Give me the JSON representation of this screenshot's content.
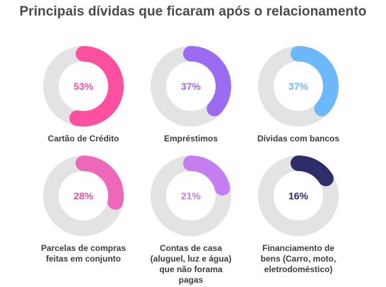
{
  "title": "Principais dívidas que ficaram após o relacionamento",
  "chart_data": [
    {
      "type": "pie",
      "title": "",
      "value": 53,
      "value_label": "53%",
      "category": "Cartão de Crédito",
      "label_lines": [
        "Cartão de Crédito"
      ],
      "color": "#ff4fa0",
      "text_color": "#ff4fa0",
      "track_color": "#e3e3e3"
    },
    {
      "type": "pie",
      "title": "",
      "value": 37,
      "value_label": "37%",
      "category": "Empréstimos",
      "label_lines": [
        "Empréstimos"
      ],
      "color": "#9b6cf2",
      "text_color": "#9b6cf2",
      "track_color": "#e3e3e3"
    },
    {
      "type": "pie",
      "title": "",
      "value": 37,
      "value_label": "37%",
      "category": "Dívidas com bancos",
      "label_lines": [
        "Dívidas com bancos"
      ],
      "color": "#6cb8fb",
      "text_color": "#6cb8fb",
      "track_color": "#e3e3e3"
    },
    {
      "type": "pie",
      "title": "",
      "value": 28,
      "value_label": "28%",
      "category": "Parcelas de compras feitas em conjunto",
      "label_lines": [
        "Parcelas de compras",
        "feitas em conjunto"
      ],
      "color": "#ef67b9",
      "text_color": "#ef4f9e",
      "track_color": "#e3e3e3"
    },
    {
      "type": "pie",
      "title": "",
      "value": 21,
      "value_label": "21%",
      "category": "Contas de casa (aluguel, luz e água) que não forama pagas",
      "label_lines": [
        "Contas de casa",
        "(aluguel, luz e água)",
        "que não forama",
        "pagas"
      ],
      "color": "#c47ef2",
      "text_color": "#c47ef2",
      "track_color": "#e3e3e3"
    },
    {
      "type": "pie",
      "title": "",
      "value": 16,
      "value_label": "16%",
      "category": "Financiamento de bens (Carro, moto, eletrodoméstico)",
      "label_lines": [
        "Financiamento de",
        "bens (Carro, moto,",
        "eletrodoméstico)"
      ],
      "color": "#2d2d69",
      "text_color": "#2d2d69",
      "track_color": "#e3e3e3"
    }
  ]
}
